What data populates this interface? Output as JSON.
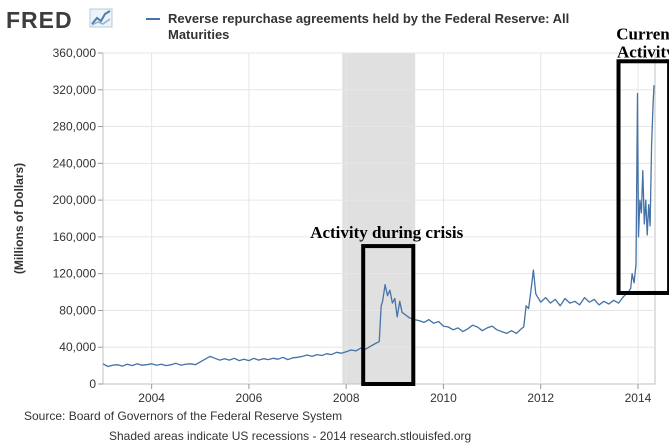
{
  "logo": {
    "text": "FRED",
    "icon": "fred-chart-icon"
  },
  "chart_data": {
    "type": "line",
    "series": [
      {
        "name": "Reverse repurchase agreements held by the Federal Reserve: All Maturities",
        "color": "#4572a7",
        "points": [
          [
            2003.0,
            22000
          ],
          [
            2003.1,
            19000
          ],
          [
            2003.2,
            20500
          ],
          [
            2003.3,
            21000
          ],
          [
            2003.4,
            19500
          ],
          [
            2003.5,
            21500
          ],
          [
            2003.6,
            20000
          ],
          [
            2003.7,
            22000
          ],
          [
            2003.8,
            20500
          ],
          [
            2003.9,
            21000
          ],
          [
            2004.0,
            22000
          ],
          [
            2004.1,
            20500
          ],
          [
            2004.2,
            21500
          ],
          [
            2004.3,
            20000
          ],
          [
            2004.4,
            21000
          ],
          [
            2004.5,
            22500
          ],
          [
            2004.6,
            20500
          ],
          [
            2004.7,
            21500
          ],
          [
            2004.8,
            22000
          ],
          [
            2004.9,
            21000
          ],
          [
            2005.0,
            24000
          ],
          [
            2005.1,
            27000
          ],
          [
            2005.2,
            30000
          ],
          [
            2005.3,
            28000
          ],
          [
            2005.4,
            26000
          ],
          [
            2005.5,
            27500
          ],
          [
            2005.6,
            26000
          ],
          [
            2005.7,
            28000
          ],
          [
            2005.8,
            25500
          ],
          [
            2005.9,
            27000
          ],
          [
            2006.0,
            25500
          ],
          [
            2006.1,
            28000
          ],
          [
            2006.2,
            26000
          ],
          [
            2006.3,
            27500
          ],
          [
            2006.4,
            26500
          ],
          [
            2006.5,
            28000
          ],
          [
            2006.6,
            27000
          ],
          [
            2006.7,
            29000
          ],
          [
            2006.8,
            26500
          ],
          [
            2006.9,
            28500
          ],
          [
            2007.0,
            29000
          ],
          [
            2007.1,
            30000
          ],
          [
            2007.2,
            31500
          ],
          [
            2007.3,
            30000
          ],
          [
            2007.4,
            32000
          ],
          [
            2007.5,
            31000
          ],
          [
            2007.6,
            33000
          ],
          [
            2007.7,
            32000
          ],
          [
            2007.8,
            34500
          ],
          [
            2007.9,
            33500
          ],
          [
            2008.0,
            35000
          ],
          [
            2008.1,
            37000
          ],
          [
            2008.2,
            36000
          ],
          [
            2008.3,
            39000
          ],
          [
            2008.4,
            38000
          ],
          [
            2008.5,
            41000
          ],
          [
            2008.6,
            44000
          ],
          [
            2008.68,
            46000
          ],
          [
            2008.72,
            85000
          ],
          [
            2008.75,
            90000
          ],
          [
            2008.8,
            108000
          ],
          [
            2008.85,
            96000
          ],
          [
            2008.9,
            102000
          ],
          [
            2008.95,
            88000
          ],
          [
            2009.0,
            93000
          ],
          [
            2009.05,
            73000
          ],
          [
            2009.1,
            90000
          ],
          [
            2009.15,
            78000
          ],
          [
            2009.2,
            76000
          ],
          [
            2009.3,
            72000
          ],
          [
            2009.4,
            70000
          ],
          [
            2009.5,
            69000
          ],
          [
            2009.6,
            67000
          ],
          [
            2009.7,
            70000
          ],
          [
            2009.8,
            66000
          ],
          [
            2009.9,
            68000
          ],
          [
            2010.0,
            63000
          ],
          [
            2010.1,
            62000
          ],
          [
            2010.2,
            59000
          ],
          [
            2010.3,
            61000
          ],
          [
            2010.4,
            57000
          ],
          [
            2010.5,
            60000
          ],
          [
            2010.6,
            64000
          ],
          [
            2010.7,
            62000
          ],
          [
            2010.8,
            58000
          ],
          [
            2010.9,
            61000
          ],
          [
            2011.0,
            63000
          ],
          [
            2011.1,
            59000
          ],
          [
            2011.2,
            57000
          ],
          [
            2011.3,
            55000
          ],
          [
            2011.4,
            58000
          ],
          [
            2011.5,
            55000
          ],
          [
            2011.6,
            60000
          ],
          [
            2011.65,
            62000
          ],
          [
            2011.7,
            85000
          ],
          [
            2011.75,
            82000
          ],
          [
            2011.8,
            102000
          ],
          [
            2011.85,
            124000
          ],
          [
            2011.9,
            98000
          ],
          [
            2012.0,
            89000
          ],
          [
            2012.1,
            94000
          ],
          [
            2012.2,
            88000
          ],
          [
            2012.3,
            92000
          ],
          [
            2012.4,
            85000
          ],
          [
            2012.5,
            93000
          ],
          [
            2012.6,
            88000
          ],
          [
            2012.7,
            90000
          ],
          [
            2012.8,
            86000
          ],
          [
            2012.9,
            94000
          ],
          [
            2013.0,
            89000
          ],
          [
            2013.1,
            92000
          ],
          [
            2013.2,
            86000
          ],
          [
            2013.3,
            90000
          ],
          [
            2013.4,
            87000
          ],
          [
            2013.5,
            91000
          ],
          [
            2013.6,
            88000
          ],
          [
            2013.7,
            95000
          ],
          [
            2013.8,
            100000
          ],
          [
            2013.85,
            104000
          ],
          [
            2013.88,
            120000
          ],
          [
            2013.92,
            110000
          ],
          [
            2013.96,
            130000
          ],
          [
            2013.99,
            316000
          ],
          [
            2014.01,
            160000
          ],
          [
            2014.04,
            200000
          ],
          [
            2014.07,
            186000
          ],
          [
            2014.1,
            232000
          ],
          [
            2014.13,
            174000
          ],
          [
            2014.16,
            200000
          ],
          [
            2014.19,
            162000
          ],
          [
            2014.22,
            195000
          ],
          [
            2014.25,
            172000
          ],
          [
            2014.28,
            260000
          ],
          [
            2014.31,
            305000
          ],
          [
            2014.33,
            325000
          ]
        ]
      }
    ],
    "xlim": [
      2003.0,
      2014.35
    ],
    "ylim": [
      0,
      360000
    ],
    "xticks": [
      2004,
      2006,
      2008,
      2010,
      2012,
      2014
    ],
    "xtick_labels": [
      "2004",
      "2006",
      "2008",
      "2010",
      "2012",
      "2014"
    ],
    "yticks": [
      0,
      40000,
      80000,
      120000,
      160000,
      200000,
      240000,
      280000,
      320000,
      360000
    ],
    "ytick_labels": [
      "0",
      "40,000",
      "80,000",
      "120,000",
      "160,000",
      "200,000",
      "240,000",
      "280,000",
      "320,000",
      "360,000"
    ],
    "ylabel": "(Millions of Dollars)",
    "recession_band": {
      "start": 2007.92,
      "end": 2009.42,
      "color": "#e0e0e0"
    },
    "grid": true,
    "annotations": [
      {
        "label_line1": "Activity during crisis",
        "label_line2": "",
        "box_x": [
          2008.35,
          2009.38
        ],
        "box_y": [
          0,
          150000
        ]
      },
      {
        "label_line1": "Current",
        "label_line2": "Activity",
        "box_x": [
          2013.6,
          2014.64
        ],
        "box_y": [
          99000,
          351000
        ]
      }
    ]
  },
  "footer": {
    "source": "Source: Board of Governors of the Federal Reserve System",
    "note": "Shaded areas indicate US recessions - 2014 research.stlouisfed.org"
  }
}
